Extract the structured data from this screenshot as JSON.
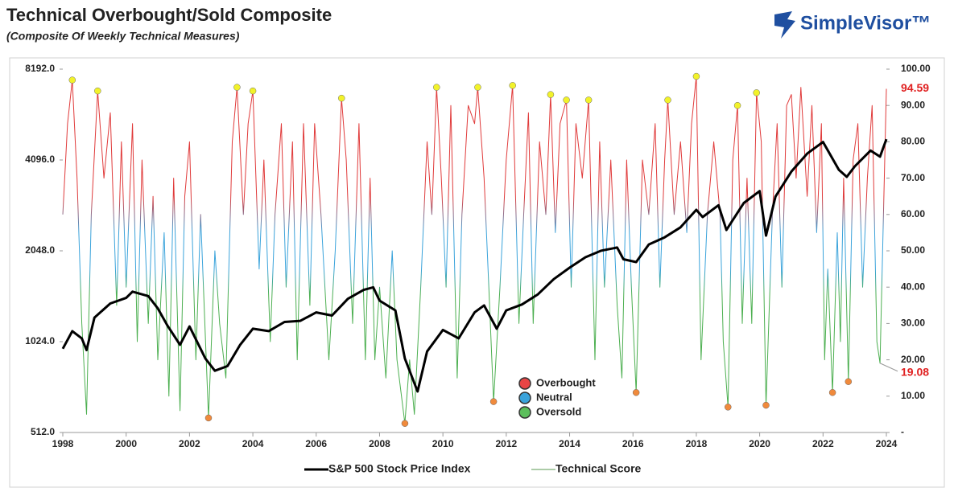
{
  "chart_data": {
    "type": "line",
    "title": "Technical Overbought/Sold Composite",
    "subtitle": "(Composite Of Weekly Technical Measures)",
    "logo": "SimpleVisor™",
    "xlim": [
      1998,
      2024
    ],
    "xticks": [
      1998,
      2000,
      2002,
      2004,
      2006,
      2008,
      2010,
      2012,
      2014,
      2016,
      2018,
      2020,
      2022,
      2024
    ],
    "ylim": [
      512,
      8192
    ],
    "log_y": true,
    "yticks": [
      {
        "value": 512,
        "label": "512.0"
      },
      {
        "value": 1024,
        "label": "1024.0"
      },
      {
        "value": 2048,
        "label": "2048.0"
      },
      {
        "value": 4096,
        "label": "4096.0"
      },
      {
        "value": 8192,
        "label": "8192.0"
      }
    ],
    "y2lim": [
      0,
      100
    ],
    "y2ticks": [
      {
        "value": 0,
        "label": "-"
      },
      {
        "value": 10,
        "label": "10.00"
      },
      {
        "value": 20,
        "label": "20.00"
      },
      {
        "value": 30,
        "label": "30.00"
      },
      {
        "value": 40,
        "label": "40.00"
      },
      {
        "value": 50,
        "label": "50.00"
      },
      {
        "value": 60,
        "label": "60.00"
      },
      {
        "value": 70,
        "label": "70.00"
      },
      {
        "value": 80,
        "label": "80.00"
      },
      {
        "value": 90,
        "label": "90.00"
      },
      {
        "value": 100,
        "label": "100.00"
      }
    ],
    "series": [
      {
        "name": "S&P 500 Stock Price Index",
        "color": "#000000",
        "x": [
          1998.0,
          1998.3,
          1998.6,
          1998.75,
          1999.0,
          1999.5,
          2000.0,
          2000.2,
          2000.7,
          2001.0,
          2001.3,
          2001.7,
          2002.0,
          2002.5,
          2002.8,
          2003.2,
          2003.6,
          2004.0,
          2004.5,
          2005.0,
          2005.5,
          2006.0,
          2006.5,
          2007.0,
          2007.5,
          2007.8,
          2008.0,
          2008.5,
          2008.8,
          2009.2,
          2009.5,
          2010.0,
          2010.5,
          2011.0,
          2011.3,
          2011.7,
          2012.0,
          2012.5,
          2013.0,
          2013.5,
          2014.0,
          2014.5,
          2015.0,
          2015.5,
          2015.7,
          2016.1,
          2016.5,
          2017.0,
          2017.5,
          2018.0,
          2018.2,
          2018.7,
          2018.95,
          2019.5,
          2020.0,
          2020.2,
          2020.5,
          2021.0,
          2021.5,
          2022.0,
          2022.5,
          2022.75,
          2023.0,
          2023.5,
          2023.8,
          2024.0
        ],
        "values": [
          970,
          1110,
          1050,
          960,
          1230,
          1370,
          1430,
          1500,
          1450,
          1320,
          1160,
          1000,
          1150,
          900,
          820,
          850,
          1000,
          1130,
          1110,
          1190,
          1200,
          1280,
          1250,
          1420,
          1520,
          1550,
          1400,
          1300,
          900,
          700,
          950,
          1120,
          1050,
          1280,
          1350,
          1130,
          1300,
          1360,
          1470,
          1650,
          1800,
          1950,
          2050,
          2100,
          1920,
          1880,
          2150,
          2270,
          2450,
          2800,
          2650,
          2900,
          2400,
          2950,
          3230,
          2300,
          3100,
          3750,
          4300,
          4700,
          3800,
          3600,
          3900,
          4400,
          4200,
          4800
        ]
      },
      {
        "name": "Technical Score",
        "color": "#5a9a50",
        "axis": "y2",
        "x": [
          1998.0,
          1998.15,
          1998.3,
          1998.45,
          1998.6,
          1998.75,
          1998.9,
          1999.1,
          1999.3,
          1999.5,
          1999.7,
          1999.85,
          2000.0,
          2000.2,
          2000.35,
          2000.5,
          2000.7,
          2000.85,
          2001.0,
          2001.2,
          2001.35,
          2001.5,
          2001.7,
          2001.85,
          2002.0,
          2002.2,
          2002.35,
          2002.6,
          2002.8,
          2002.95,
          2003.15,
          2003.35,
          2003.5,
          2003.7,
          2003.85,
          2004.0,
          2004.2,
          2004.35,
          2004.55,
          2004.7,
          2004.9,
          2005.05,
          2005.25,
          2005.4,
          2005.6,
          2005.8,
          2005.95,
          2006.15,
          2006.4,
          2006.6,
          2006.8,
          2006.95,
          2007.15,
          2007.35,
          2007.55,
          2007.7,
          2007.85,
          2008.0,
          2008.2,
          2008.4,
          2008.55,
          2008.8,
          2008.95,
          2009.1,
          2009.3,
          2009.5,
          2009.65,
          2009.8,
          2009.95,
          2010.1,
          2010.25,
          2010.45,
          2010.6,
          2010.8,
          2011.0,
          2011.1,
          2011.3,
          2011.45,
          2011.6,
          2011.8,
          2012.0,
          2012.2,
          2012.4,
          2012.55,
          2012.7,
          2012.85,
          2013.05,
          2013.25,
          2013.4,
          2013.55,
          2013.7,
          2013.9,
          2014.05,
          2014.2,
          2014.4,
          2014.6,
          2014.8,
          2014.95,
          2015.1,
          2015.3,
          2015.5,
          2015.65,
          2015.8,
          2015.95,
          2016.1,
          2016.3,
          2016.5,
          2016.7,
          2016.85,
          2017.0,
          2017.1,
          2017.3,
          2017.5,
          2017.7,
          2017.85,
          2018.0,
          2018.15,
          2018.35,
          2018.55,
          2018.75,
          2018.85,
          2019.0,
          2019.15,
          2019.3,
          2019.45,
          2019.6,
          2019.75,
          2019.9,
          2020.05,
          2020.2,
          2020.4,
          2020.55,
          2020.7,
          2020.85,
          2021.0,
          2021.15,
          2021.3,
          2021.5,
          2021.65,
          2021.8,
          2021.95,
          2022.05,
          2022.15,
          2022.3,
          2022.45,
          2022.55,
          2022.65,
          2022.8,
          2022.95,
          2023.1,
          2023.25,
          2023.4,
          2023.55,
          2023.7,
          2023.8,
          2023.92,
          2024.0
        ],
        "values": [
          60,
          85,
          97,
          70,
          30,
          5,
          60,
          94,
          70,
          88,
          35,
          80,
          40,
          85,
          25,
          75,
          30,
          65,
          20,
          55,
          10,
          70,
          6,
          65,
          80,
          20,
          60,
          4,
          50,
          30,
          15,
          80,
          95,
          60,
          85,
          94,
          45,
          75,
          25,
          60,
          85,
          40,
          80,
          20,
          85,
          35,
          85,
          60,
          20,
          50,
          92,
          75,
          30,
          85,
          20,
          70,
          20,
          40,
          15,
          50,
          20,
          2.5,
          20,
          5,
          40,
          80,
          60,
          95,
          70,
          40,
          90,
          15,
          60,
          90,
          85,
          95,
          70,
          40,
          8.5,
          40,
          75,
          95.5,
          30,
          60,
          88,
          30,
          80,
          60,
          93,
          55,
          85,
          91.5,
          40,
          85,
          70,
          91.5,
          20,
          80,
          40,
          75,
          35,
          15,
          75,
          40,
          11,
          75,
          60,
          85,
          40,
          75,
          91.5,
          60,
          80,
          55,
          85,
          98,
          20,
          60,
          80,
          60,
          25,
          7,
          75,
          90,
          30,
          70,
          30,
          93.5,
          80,
          7.5,
          60,
          85,
          40,
          90,
          93,
          70,
          95,
          65,
          90,
          55,
          85,
          20,
          45,
          11,
          55,
          25,
          70,
          14,
          75,
          85,
          40,
          70,
          90,
          25,
          19.08,
          65,
          94.59
        ]
      }
    ],
    "color_stops": [
      {
        "value": 100,
        "color": "#e03a3a"
      },
      {
        "value": 65,
        "color": "#e03a3a"
      },
      {
        "value": 55,
        "color": "#3aa3db"
      },
      {
        "value": 45,
        "color": "#3aa3db"
      },
      {
        "value": 38,
        "color": "#4caf50"
      },
      {
        "value": 0,
        "color": "#4caf50"
      }
    ],
    "markers": [
      {
        "color": "#f2f22a",
        "axis": "y2",
        "x": [
          1998.3,
          1999.1,
          2003.5,
          2004.0,
          2006.8,
          2009.8,
          2011.1,
          2012.2,
          2013.4,
          2013.9,
          2014.6,
          2017.1,
          2018.0,
          2019.3,
          2019.9
        ],
        "values": [
          97,
          94,
          95,
          94,
          92,
          95,
          95,
          95.5,
          93,
          91.5,
          91.5,
          91.5,
          98,
          90,
          93.5
        ]
      },
      {
        "color": "#f08a3c",
        "axis": "y2",
        "x": [
          2002.6,
          2008.8,
          2011.6,
          2016.1,
          2019.0,
          2020.2,
          2022.3,
          2022.8
        ],
        "values": [
          4,
          2.5,
          8.5,
          11,
          7,
          7.5,
          11,
          14
        ]
      }
    ],
    "zones": [
      {
        "label": "Overbought",
        "color": "#e84545"
      },
      {
        "label": "Neutral",
        "color": "#3aa3db"
      },
      {
        "label": "Oversold",
        "color": "#5cbf5c"
      }
    ],
    "annotations": [
      {
        "label": "94.59",
        "value": 94.59
      },
      {
        "label": "19.08",
        "value": 19.08
      }
    ]
  }
}
